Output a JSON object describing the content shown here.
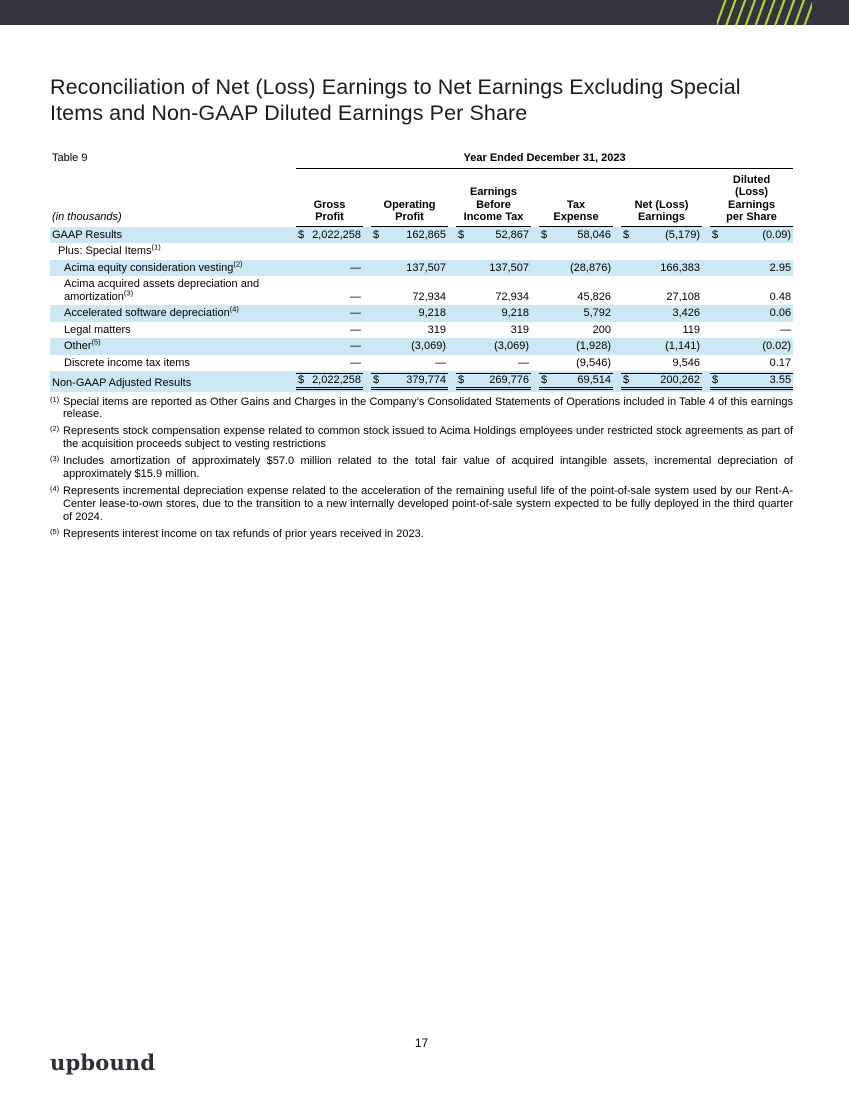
{
  "page": {
    "title": "Reconciliation of Net (Loss) Earnings to Net Earnings Excluding Special Items and Non-GAAP Diluted Earnings Per Share",
    "page_number": "17",
    "logo_text": "upbound"
  },
  "colors": {
    "header_bar": "#37343d",
    "stripe_green": "#a4d63c",
    "row_highlight": "#cce8f5"
  },
  "table": {
    "table_label": "Table 9",
    "period_header": "Year Ended December 31, 2023",
    "units_label": "(in thousands)",
    "columns": [
      "Gross\nProfit",
      "Operating\nProfit",
      "Earnings\nBefore\nIncome Tax",
      "Tax\nExpense",
      "Net (Loss)\nEarnings",
      "Diluted\n(Loss)\nEarnings\nper Share"
    ],
    "rows": [
      {
        "label": "GAAP Results",
        "sup": "",
        "indent": 0,
        "highlight": true,
        "dollar": true,
        "total": false,
        "values": [
          "2,022,258",
          "162,865",
          "52,867",
          "58,046",
          "(5,179)",
          "(0.09)"
        ]
      },
      {
        "label": "Plus: Special Items",
        "sup": "(1)",
        "indent": 1,
        "highlight": false,
        "dollar": false,
        "total": false,
        "values": [
          "",
          "",
          "",
          "",
          "",
          ""
        ]
      },
      {
        "label": "Acima equity consideration vesting",
        "sup": "(2)",
        "indent": 2,
        "highlight": true,
        "dollar": false,
        "total": false,
        "values": [
          "—",
          "137,507",
          "137,507",
          "(28,876)",
          "166,383",
          "2.95"
        ]
      },
      {
        "label": "Acima acquired assets depreciation and amortization",
        "sup": "(3)",
        "indent": 2,
        "highlight": false,
        "dollar": false,
        "total": false,
        "values": [
          "—",
          "72,934",
          "72,934",
          "45,826",
          "27,108",
          "0.48"
        ]
      },
      {
        "label": "Accelerated software depreciation",
        "sup": "(4)",
        "indent": 2,
        "highlight": true,
        "dollar": false,
        "total": false,
        "values": [
          "—",
          "9,218",
          "9,218",
          "5,792",
          "3,426",
          "0.06"
        ]
      },
      {
        "label": "Legal matters",
        "sup": "",
        "indent": 2,
        "highlight": false,
        "dollar": false,
        "total": false,
        "values": [
          "—",
          "319",
          "319",
          "200",
          "119",
          "—"
        ]
      },
      {
        "label": "Other",
        "sup": "(5)",
        "indent": 2,
        "highlight": true,
        "dollar": false,
        "total": false,
        "values": [
          "—",
          "(3,069)",
          "(3,069)",
          "(1,928)",
          "(1,141)",
          "(0.02)"
        ]
      },
      {
        "label": "Discrete income tax items",
        "sup": "",
        "indent": 2,
        "highlight": false,
        "dollar": false,
        "total": false,
        "values": [
          "—",
          "—",
          "—",
          "(9,546)",
          "9,546",
          "0.17"
        ]
      },
      {
        "label": "Non-GAAP Adjusted Results",
        "sup": "",
        "indent": 0,
        "highlight": true,
        "dollar": true,
        "total": true,
        "values": [
          "2,022,258",
          "379,774",
          "269,776",
          "69,514",
          "200,262",
          "3.55"
        ]
      }
    ]
  },
  "footnotes": [
    {
      "marker": "(1)",
      "text": "Special items are reported as Other Gains and Charges in the Company’s Consolidated Statements of Operations included in Table 4 of this earnings release."
    },
    {
      "marker": "(2)",
      "text": "Represents stock compensation expense related to common stock issued to Acima Holdings employees under restricted stock agreements as part of the acquisition proceeds subject to vesting restrictions"
    },
    {
      "marker": "(3)",
      "text": "Includes amortization of approximately $57.0 million related to the total fair value of acquired intangible assets, incremental depreciation of approximately $15.9 million."
    },
    {
      "marker": "(4)",
      "text": "Represents incremental depreciation expense related to the acceleration of the remaining useful life of the point-of-sale system used by our Rent-A-Center lease-to-own stores, due to the transition to a new internally developed point-of-sale system expected to be fully deployed in the third quarter of 2024."
    },
    {
      "marker": "(5)",
      "text": "Represents interest income on tax refunds of prior years received in 2023."
    }
  ]
}
